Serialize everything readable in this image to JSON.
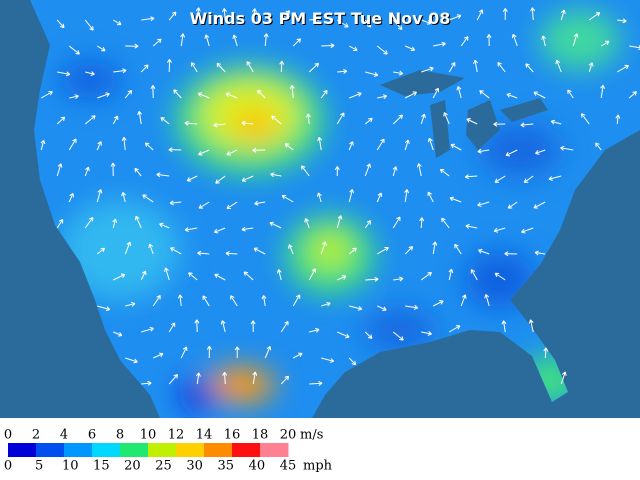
{
  "title": "Winds 03 PM EST Tue Nov 08",
  "legend": {
    "ms_unit": "m/s",
    "ms_labels": [
      0,
      2,
      4,
      6,
      8,
      10,
      12,
      14,
      16,
      18,
      20
    ],
    "mph_unit": "mph",
    "mph_labels": [
      0,
      5,
      10,
      15,
      20,
      25,
      30,
      35,
      40,
      45
    ],
    "colors": [
      "#0000d8",
      "#0050f0",
      "#0098ff",
      "#00d8ff",
      "#20e870",
      "#c0f000",
      "#ffd000",
      "#ff8c00",
      "#ff1010",
      "#ff8090"
    ]
  }
}
